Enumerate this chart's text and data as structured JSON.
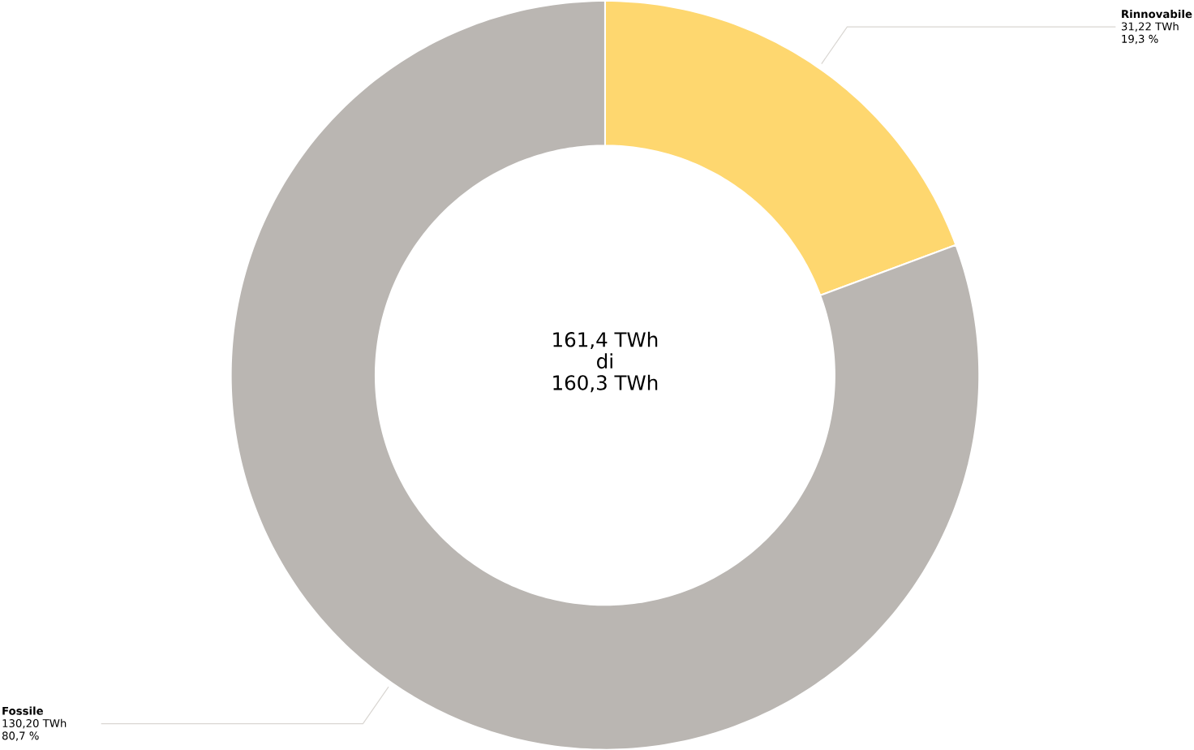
{
  "chart_data": {
    "type": "donut",
    "categories": [
      "Rinnovabile",
      "Fossile"
    ],
    "values": [
      31.22,
      130.2
    ],
    "colors": [
      "#fed76f",
      "#bab6b2"
    ],
    "value_labels": [
      "31,22 TWh",
      "130,20 TWh"
    ],
    "annotations": [
      "161,4 TWh",
      "di",
      "160,3 TWh",
      {
        "text": "19,3 %",
        "x": "Rinnovabile"
      },
      {
        "text": "80,7 %",
        "x": "Fossile"
      }
    ]
  }
}
